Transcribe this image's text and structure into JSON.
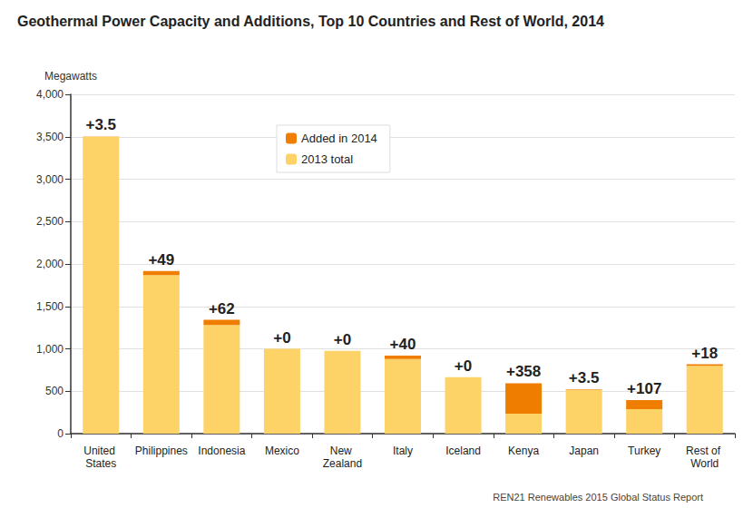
{
  "chart_data": {
    "type": "bar",
    "title": "Geothermal Power Capacity and Additions, Top 10 Countries and Rest of World, 2014",
    "y_label": "Megawatts",
    "annotations": [
      {
        "text": "REN21 Renewables 2015 Global Status Report"
      }
    ],
    "categories": [
      "United States",
      "Philippines",
      "Indonesia",
      "Mexico",
      "New Zealand",
      "Italy",
      "Iceland",
      "Kenya",
      "Japan",
      "Turkey",
      "Rest of World"
    ],
    "stacked": true,
    "series": [
      {
        "name": "2013 total",
        "color": "#fdd267",
        "values": [
          3500,
          1868,
          1280,
          1000,
          975,
          880,
          665,
          236,
          520,
          290,
          800
        ]
      },
      {
        "name": "Added in 2014",
        "color": "#ef7d00",
        "data_labels": true,
        "values": [
          3.5,
          49,
          62,
          0,
          0,
          40,
          0,
          358,
          3.5,
          107,
          18
        ],
        "value_labels": [
          "+3.5",
          "+49",
          "+62",
          "+0",
          "+0",
          "+40",
          "+0",
          "+358",
          "+3.5",
          "+107",
          "+18"
        ]
      }
    ],
    "ylim": [
      0,
      4000
    ],
    "yticks": [
      0,
      500,
      {
        "value": 1000,
        "label": "1,000"
      },
      {
        "value": 1500,
        "label": "1,500"
      },
      {
        "value": 2000,
        "label": "2,000"
      },
      {
        "value": 2500,
        "label": "2,500"
      },
      {
        "value": 3000,
        "label": "3,000"
      },
      {
        "value": 3500,
        "label": "3,500"
      },
      {
        "value": 4000,
        "label": "4,000"
      }
    ],
    "grid": true,
    "legend": "top"
  }
}
